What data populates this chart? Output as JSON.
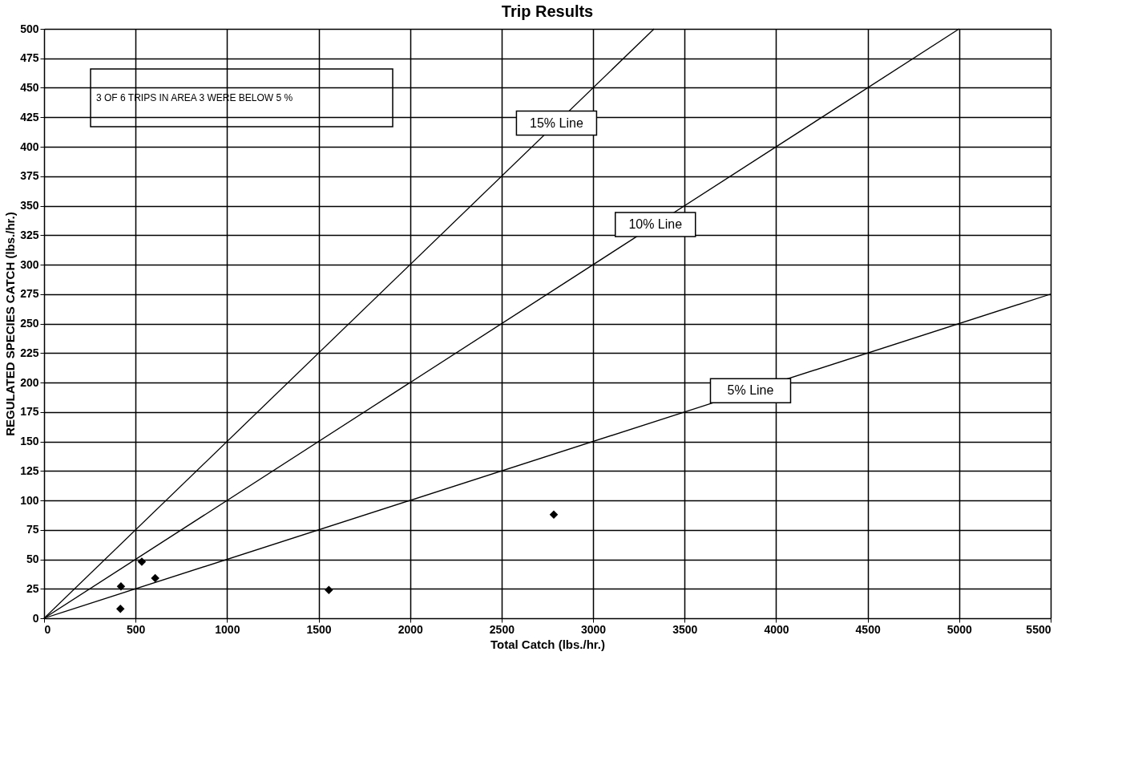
{
  "chart_data": {
    "type": "scatter",
    "title": "Trip Results",
    "xlabel": "Total Catch (lbs./hr.)",
    "ylabel": "REGULATED SPECIES CATCH (lbs./hr.)",
    "series": [
      {
        "color": "#000000",
        "marker": "diamond",
        "x": [
          417,
          420,
          534,
          607,
          1556,
          2785
        ],
        "values": [
          8,
          27,
          48,
          34,
          24,
          88
        ]
      },
      {
        "type": "line",
        "color": "#000000",
        "marker": "none",
        "x": [
          0,
          3333
        ],
        "values": [
          0,
          500
        ]
      },
      {
        "type": "line",
        "color": "#000000",
        "marker": "none",
        "x": [
          0,
          5000
        ],
        "values": [
          0,
          500
        ]
      },
      {
        "type": "line",
        "color": "#000000",
        "marker": "none",
        "x": [
          0,
          5500
        ],
        "values": [
          0,
          275
        ]
      }
    ],
    "annotations": [
      "3 OF 6 TRIPS IN AREA 3 WERE BELOW 5 %",
      {
        "text": "15% Line",
        "x": 2800,
        "y": 420
      },
      {
        "text": "10% Line",
        "x": 3340,
        "y": 334
      },
      {
        "text": "5% Line",
        "x": 3860,
        "y": 193
      }
    ],
    "xlim": [
      0,
      5500
    ],
    "xticks": [
      0,
      500,
      1000,
      1500,
      2000,
      2500,
      3000,
      3500,
      4000,
      4500,
      5000,
      5500
    ],
    "ylim": [
      0,
      500
    ],
    "yticks": [
      0,
      25,
      50,
      75,
      100,
      125,
      150,
      175,
      200,
      225,
      250,
      275,
      300,
      325,
      350,
      375,
      400,
      425,
      450,
      475,
      500
    ],
    "grid": true
  }
}
